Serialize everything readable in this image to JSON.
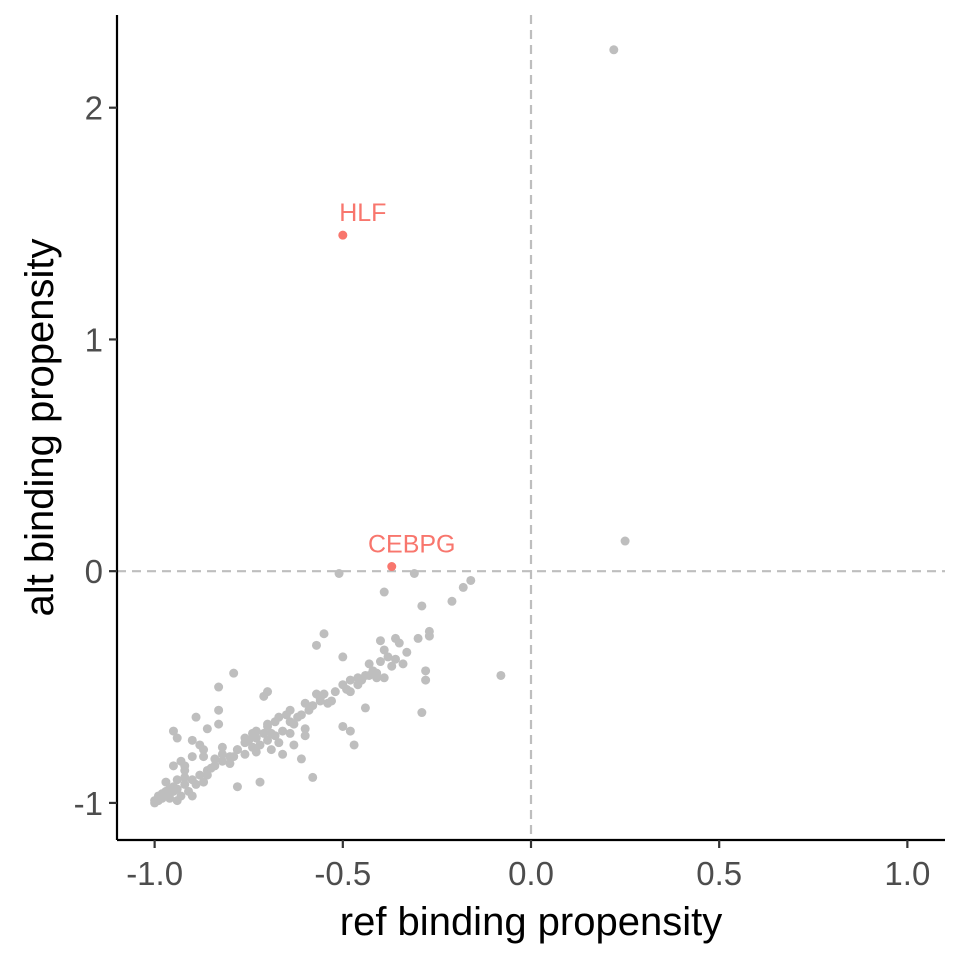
{
  "chart_data": {
    "type": "scatter",
    "title": "",
    "xlabel": "ref binding propensity",
    "ylabel": "alt binding propensity",
    "xlim": [
      -1.1,
      1.1
    ],
    "ylim": [
      -1.16,
      2.4
    ],
    "x_ticks": [
      -1.0,
      -0.5,
      0.0,
      0.5,
      1.0
    ],
    "x_tick_labels": [
      "-1.0",
      "-0.5",
      "0.0",
      "0.5",
      "1.0"
    ],
    "y_ticks": [
      -1,
      0,
      1,
      2
    ],
    "y_tick_labels": [
      "-1",
      "0",
      "1",
      "2"
    ],
    "reference_lines": {
      "x": 0,
      "y": 0,
      "style": "dashed"
    },
    "grid": false,
    "legend": "none",
    "colors": {
      "highlight": "#f8766d",
      "default": "#bebebe",
      "reference_line": "#bebebe"
    },
    "highlighted": [
      {
        "label": "HLF",
        "x": -0.5,
        "y": 1.45
      },
      {
        "label": "CEBPG",
        "x": -0.37,
        "y": 0.02
      }
    ],
    "points": [
      [
        0.22,
        2.25
      ],
      [
        0.25,
        0.13
      ],
      [
        -0.51,
        -0.01
      ],
      [
        -0.31,
        -0.01
      ],
      [
        -0.18,
        -0.07
      ],
      [
        -0.16,
        -0.04
      ],
      [
        -0.21,
        -0.13
      ],
      [
        -0.39,
        -0.09
      ],
      [
        -0.29,
        -0.15
      ],
      [
        -0.36,
        -0.29
      ],
      [
        -0.35,
        -0.31
      ],
      [
        -0.3,
        -0.29
      ],
      [
        -0.27,
        -0.26
      ],
      [
        -0.27,
        -0.28
      ],
      [
        -0.33,
        -0.35
      ],
      [
        -0.4,
        -0.3
      ],
      [
        -0.39,
        -0.34
      ],
      [
        -0.55,
        -0.27
      ],
      [
        -0.57,
        -0.32
      ],
      [
        -0.5,
        -0.37
      ],
      [
        -0.43,
        -0.4
      ],
      [
        -0.4,
        -0.39
      ],
      [
        -0.38,
        -0.37
      ],
      [
        -0.36,
        -0.38
      ],
      [
        -0.42,
        -0.43
      ],
      [
        -0.44,
        -0.45
      ],
      [
        -0.46,
        -0.46
      ],
      [
        -0.39,
        -0.46
      ],
      [
        -0.41,
        -0.46
      ],
      [
        -0.48,
        -0.47
      ],
      [
        -0.5,
        -0.49
      ],
      [
        -0.49,
        -0.51
      ],
      [
        -0.52,
        -0.52
      ],
      [
        -0.55,
        -0.53
      ],
      [
        -0.57,
        -0.53
      ],
      [
        -0.56,
        -0.56
      ],
      [
        -0.54,
        -0.57
      ],
      [
        -0.6,
        -0.57
      ],
      [
        -0.64,
        -0.6
      ],
      [
        -0.65,
        -0.62
      ],
      [
        -0.67,
        -0.63
      ],
      [
        -0.68,
        -0.65
      ],
      [
        -0.7,
        -0.67
      ],
      [
        -0.71,
        -0.7
      ],
      [
        -0.73,
        -0.72
      ],
      [
        -0.75,
        -0.73
      ],
      [
        -0.76,
        -0.74
      ],
      [
        -0.78,
        -0.77
      ],
      [
        -0.8,
        -0.8
      ],
      [
        -0.82,
        -0.82
      ],
      [
        -0.84,
        -0.84
      ],
      [
        -0.86,
        -0.86
      ],
      [
        -0.88,
        -0.88
      ],
      [
        -0.9,
        -0.9
      ],
      [
        -0.92,
        -0.92
      ],
      [
        -0.94,
        -0.94
      ],
      [
        -0.95,
        -0.95
      ],
      [
        -0.96,
        -0.96
      ],
      [
        -0.97,
        -0.97
      ],
      [
        -0.98,
        -0.98
      ],
      [
        -0.99,
        -0.99
      ],
      [
        -1.0,
        -1.0
      ],
      [
        -0.93,
        -0.97
      ],
      [
        -0.94,
        -0.99
      ],
      [
        -0.96,
        -0.98
      ],
      [
        -0.97,
        -0.95
      ],
      [
        -0.95,
        -0.93
      ],
      [
        -0.91,
        -0.95
      ],
      [
        -0.9,
        -0.97
      ],
      [
        -0.92,
        -0.89
      ],
      [
        -0.89,
        -0.92
      ],
      [
        -0.87,
        -0.91
      ],
      [
        -0.86,
        -0.88
      ],
      [
        -0.85,
        -0.85
      ],
      [
        -0.84,
        -0.81
      ],
      [
        -0.82,
        -0.79
      ],
      [
        -0.8,
        -0.83
      ],
      [
        -0.79,
        -0.8
      ],
      [
        -0.78,
        -0.77
      ],
      [
        -0.76,
        -0.79
      ],
      [
        -0.74,
        -0.76
      ],
      [
        -0.73,
        -0.69
      ],
      [
        -0.72,
        -0.75
      ],
      [
        -0.7,
        -0.73
      ],
      [
        -0.69,
        -0.7
      ],
      [
        -0.68,
        -0.71
      ],
      [
        -0.66,
        -0.69
      ],
      [
        -0.64,
        -0.65
      ],
      [
        -0.63,
        -0.66
      ],
      [
        -0.62,
        -0.63
      ],
      [
        -0.61,
        -0.62
      ],
      [
        -0.59,
        -0.6
      ],
      [
        -0.58,
        -0.58
      ],
      [
        -0.56,
        -0.55
      ],
      [
        -0.53,
        -0.56
      ],
      [
        -0.48,
        -0.52
      ],
      [
        -0.46,
        -0.49
      ],
      [
        -0.45,
        -0.47
      ],
      [
        -0.43,
        -0.45
      ],
      [
        -0.41,
        -0.44
      ],
      [
        -0.37,
        -0.41
      ],
      [
        -0.34,
        -0.4
      ],
      [
        -0.28,
        -0.43
      ],
      [
        -0.28,
        -0.47
      ],
      [
        -0.08,
        -0.45
      ],
      [
        -0.29,
        -0.61
      ],
      [
        -0.5,
        -0.67
      ],
      [
        -0.48,
        -0.69
      ],
      [
        -0.47,
        -0.75
      ],
      [
        -0.58,
        -0.89
      ],
      [
        -0.72,
        -0.91
      ],
      [
        -0.78,
        -0.93
      ],
      [
        -0.61,
        -0.81
      ],
      [
        -0.66,
        -0.79
      ],
      [
        -0.69,
        -0.77
      ],
      [
        -0.73,
        -0.78
      ],
      [
        -0.63,
        -0.75
      ],
      [
        -0.64,
        -0.7
      ],
      [
        -0.67,
        -0.74
      ],
      [
        -0.7,
        -0.52
      ],
      [
        -0.71,
        -0.54
      ],
      [
        -0.79,
        -0.44
      ],
      [
        -0.83,
        -0.5
      ],
      [
        -0.83,
        -0.6
      ],
      [
        -0.83,
        -0.66
      ],
      [
        -0.86,
        -0.68
      ],
      [
        -0.89,
        -0.63
      ],
      [
        -0.88,
        -0.75
      ],
      [
        -0.95,
        -0.69
      ],
      [
        -0.94,
        -0.72
      ],
      [
        -0.9,
        -0.73
      ],
      [
        -0.87,
        -0.77
      ],
      [
        -0.93,
        -0.82
      ],
      [
        -0.95,
        -0.84
      ],
      [
        -0.97,
        -0.91
      ],
      [
        -0.99,
        -0.97
      ],
      [
        -1.0,
        -0.99
      ],
      [
        -0.98,
        -0.96
      ],
      [
        -0.96,
        -0.94
      ],
      [
        -0.94,
        -0.9
      ],
      [
        -0.92,
        -0.86
      ],
      [
        -0.9,
        -0.8
      ],
      [
        -0.82,
        -0.76
      ],
      [
        -0.76,
        -0.72
      ],
      [
        -0.74,
        -0.7
      ],
      [
        -0.7,
        -0.66
      ],
      [
        -0.6,
        -0.71
      ],
      [
        -0.44,
        -0.59
      ],
      [
        -0.6,
        -0.68
      ],
      [
        -0.92,
        -0.84
      ],
      [
        -0.87,
        -0.8
      ]
    ]
  }
}
